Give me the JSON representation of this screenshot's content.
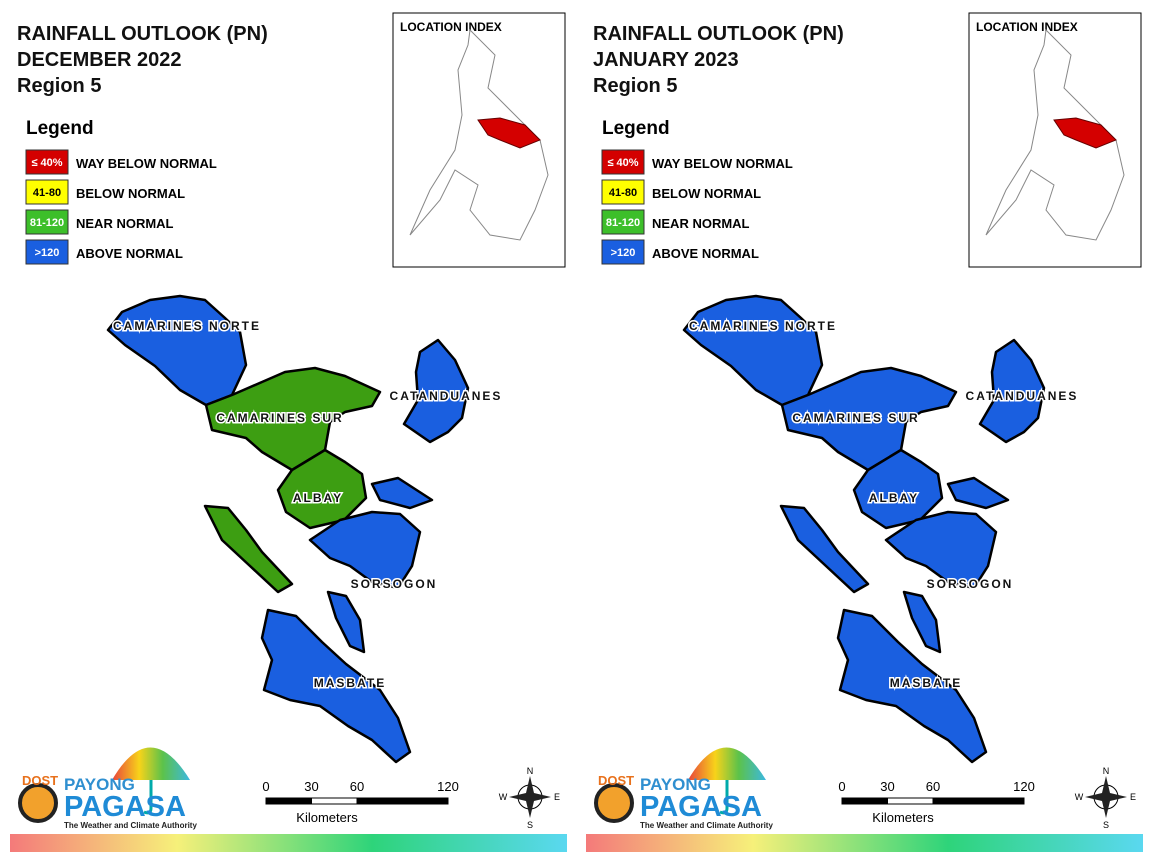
{
  "panels": [
    {
      "title": [
        "RAINFALL OUTLOOK (PN)",
        "DECEMBER 2022",
        "Region 5"
      ],
      "legend_title": "Legend",
      "legend": [
        {
          "swatch": "≤ 40%",
          "label": "WAY BELOW NORMAL",
          "color": "#d40000"
        },
        {
          "swatch": "41-80",
          "label": "BELOW NORMAL",
          "color": "#ffff00"
        },
        {
          "swatch": "81-120",
          "label": "NEAR NORMAL",
          "color": "#3dbf2a"
        },
        {
          "swatch": ">120",
          "label": "ABOVE NORMAL",
          "color": "#1a5fe0"
        }
      ],
      "location_index": "LOCATION INDEX",
      "provinces": [
        {
          "name": "CAMARINES NORTE",
          "color": "#1a5fe0"
        },
        {
          "name": "CAMARINES SUR",
          "color": "#3d9e12"
        },
        {
          "name": "ALBAY",
          "color": "#3d9e12"
        },
        {
          "name": "CATANDUANES",
          "color": "#1a5fe0"
        },
        {
          "name": "SORSOGON",
          "color": "#1a5fe0"
        },
        {
          "name": "MASBATE",
          "color": "#1a5fe0"
        }
      ],
      "scale": {
        "ticks": [
          0,
          30,
          60,
          120
        ],
        "unit": "Kilometers"
      },
      "compass": {
        "n": "N",
        "e": "E",
        "s": "S",
        "w": "W"
      },
      "logo": {
        "dost": "DOST",
        "payong": "PAYONG",
        "pagasa": "PAGASA",
        "tagline": "The Weather and Climate Authority"
      }
    },
    {
      "title": [
        "RAINFALL OUTLOOK (PN)",
        "JANUARY 2023",
        "Region 5"
      ],
      "legend_title": "Legend",
      "legend": [
        {
          "swatch": "≤ 40%",
          "label": "WAY BELOW NORMAL",
          "color": "#d40000"
        },
        {
          "swatch": "41-80",
          "label": "BELOW NORMAL",
          "color": "#ffff00"
        },
        {
          "swatch": "81-120",
          "label": "NEAR NORMAL",
          "color": "#3dbf2a"
        },
        {
          "swatch": ">120",
          "label": "ABOVE NORMAL",
          "color": "#1a5fe0"
        }
      ],
      "location_index": "LOCATION INDEX",
      "provinces": [
        {
          "name": "CAMARINES NORTE",
          "color": "#1a5fe0"
        },
        {
          "name": "CAMARINES SUR",
          "color": "#1a5fe0"
        },
        {
          "name": "ALBAY",
          "color": "#1a5fe0"
        },
        {
          "name": "CATANDUANES",
          "color": "#1a5fe0"
        },
        {
          "name": "SORSOGON",
          "color": "#1a5fe0"
        },
        {
          "name": "MASBATE",
          "color": "#1a5fe0"
        }
      ],
      "scale": {
        "ticks": [
          0,
          30,
          60,
          120
        ],
        "unit": "Kilometers"
      },
      "compass": {
        "n": "N",
        "e": "E",
        "s": "S",
        "w": "W"
      },
      "logo": {
        "dost": "DOST",
        "payong": "PAYONG",
        "pagasa": "PAGASA",
        "tagline": "The Weather and Climate Authority"
      }
    }
  ]
}
